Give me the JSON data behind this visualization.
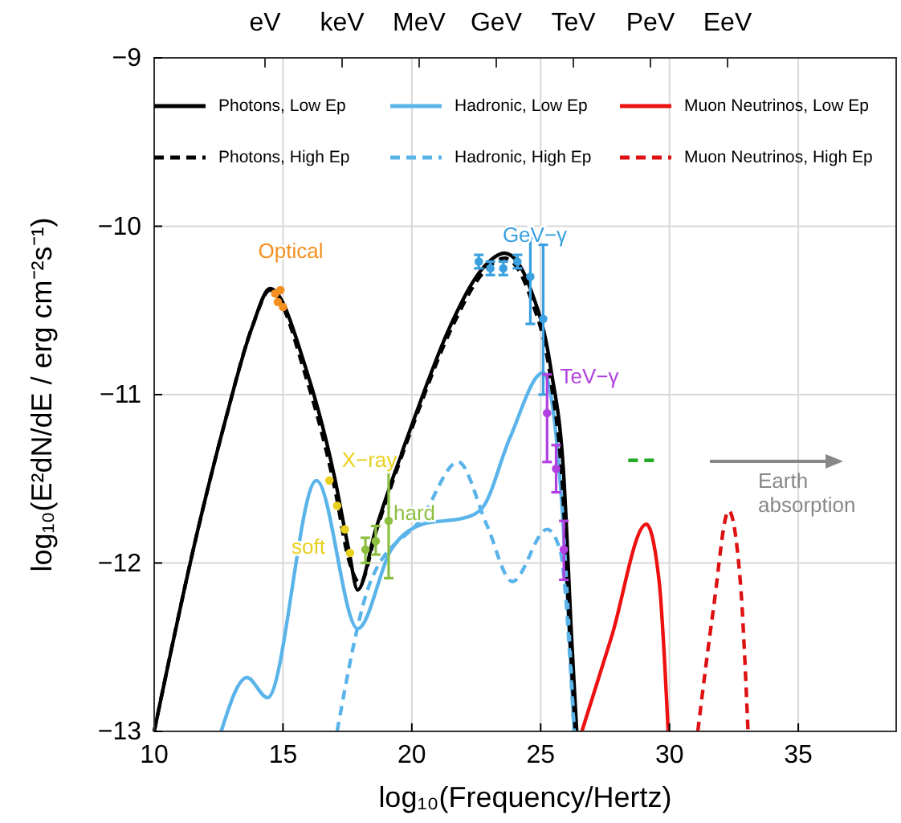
{
  "chart_data": {
    "type": "line",
    "xlabel": "log₁₀(Frequency/Hertz)",
    "ylabel": "log₁₀(E²dN/dE / erg cm⁻²s⁻¹)",
    "xlim": [
      10,
      38.8
    ],
    "ylim": [
      -13,
      -9
    ],
    "xticks": [
      10,
      15,
      20,
      25,
      30,
      35
    ],
    "yticks": [
      {
        "value": -13,
        "label": "−13"
      },
      {
        "value": -12,
        "label": "−12"
      },
      {
        "value": -11,
        "label": "−11"
      },
      {
        "value": -10,
        "label": "−10"
      },
      {
        "value": -9,
        "label": "−9"
      }
    ],
    "grid": true,
    "legend": "top",
    "series": [
      {
        "name": "Photons, Low Ep",
        "color": "#000000",
        "line_style": "solid",
        "x": [
          10,
          11.7,
          12.75,
          13.8,
          14.5,
          15.9,
          17.0,
          17.55,
          17.9,
          18.6,
          20.05,
          21.5,
          22.75,
          23.6,
          24.6,
          25.4,
          25.9,
          26.2,
          26.4
        ],
        "values": [
          -13,
          -11.8,
          -11.16,
          -10.6,
          -10.37,
          -10.85,
          -11.49,
          -11.92,
          -12.16,
          -11.8,
          -11.16,
          -10.59,
          -10.25,
          -10.16,
          -10.37,
          -10.85,
          -11.49,
          -12.44,
          -13
        ]
      },
      {
        "name": "Hadronic, Low Ep",
        "color": "#5ab4ea",
        "line_style": "solid",
        "x": [
          12.6,
          13.6,
          14.4,
          16.3,
          17.9,
          19.2,
          20.4,
          22.1,
          22.75,
          23.8,
          25.1,
          25.8,
          26.3
        ],
        "values": [
          -13,
          -12.68,
          -12.8,
          -11.51,
          -12.39,
          -11.92,
          -11.77,
          -11.73,
          -11.67,
          -11.26,
          -10.87,
          -11.6,
          -13
        ]
      },
      {
        "name": "Muon Neutrinos, Low Ep",
        "color": "#ee1111",
        "line_style": "solid",
        "x": [
          26.6,
          27.75,
          29.1,
          29.6,
          29.95
        ],
        "values": [
          -13,
          -12.44,
          -11.77,
          -12.11,
          -13
        ]
      },
      {
        "name": "Photons, High Ep",
        "color": "#000000",
        "line_style": "dashed",
        "x": [
          10,
          11.7,
          12.75,
          13.8,
          14.5,
          15.9,
          17.0,
          17.55,
          18.0,
          18.6,
          20.05,
          21.5,
          22.75,
          23.6,
          24.6,
          25.4,
          25.85,
          26.15,
          26.35
        ],
        "values": [
          -13,
          -11.8,
          -11.16,
          -10.6,
          -10.38,
          -10.9,
          -11.55,
          -11.98,
          -12.12,
          -11.82,
          -11.18,
          -10.62,
          -10.28,
          -10.19,
          -10.42,
          -10.92,
          -11.55,
          -12.48,
          -13
        ]
      },
      {
        "name": "Hadronic, High Ep",
        "color": "#5ab4ea",
        "line_style": "dashed",
        "x": [
          17.1,
          18.4,
          20.4,
          21.8,
          22.9,
          23.9,
          25.25,
          25.75,
          26.3
        ],
        "values": [
          -13,
          -12.11,
          -11.73,
          -11.4,
          -11.77,
          -12.11,
          -11.8,
          -11.92,
          -13
        ]
      },
      {
        "name": "Muon Neutrinos, High Ep",
        "color": "#dd1111",
        "line_style": "dashed",
        "x": [
          31.1,
          31.7,
          32.3,
          32.75,
          33.05
        ],
        "values": [
          -13,
          -12.28,
          -11.69,
          -12.11,
          -13
        ]
      },
      {
        "color": "#22aa22",
        "line_style": "dashed",
        "x": [
          28.4,
          29.6
        ],
        "values": [
          -11.39,
          -11.39
        ]
      },
      {
        "type": "scatter",
        "name": "Optical",
        "color": "#f39020",
        "marker": "circle",
        "x": [
          14.7,
          14.8,
          14.9,
          15.0
        ],
        "values": [
          -10.4,
          -10.45,
          -10.38,
          -10.48
        ]
      },
      {
        "type": "scatter",
        "name": "soft",
        "color": "#e8d020",
        "marker": "circle",
        "x": [
          16.8,
          17.1,
          17.4,
          17.6
        ],
        "values": [
          -11.51,
          -11.66,
          -11.8,
          -11.94
        ]
      },
      {
        "type": "scatter",
        "name": "hard",
        "color": "#8cbf3f",
        "marker": "circle",
        "x": [
          18.2,
          18.6,
          19.1
        ],
        "values": [
          -11.92,
          -11.87,
          -11.75
        ],
        "errors": [
          [
            -12.0,
            -11.85
          ],
          [
            -11.95,
            -11.78
          ],
          [
            -12.09,
            -11.42
          ]
        ]
      },
      {
        "type": "scatter",
        "name": "GeV−γ",
        "color": "#3aa0e0",
        "marker": "circle",
        "x": [
          22.6,
          23.05,
          23.55,
          24.1,
          24.6,
          25.1
        ],
        "values": [
          -10.21,
          -10.25,
          -10.25,
          -10.21,
          -10.3,
          -10.55
        ],
        "errors": [
          0.04,
          0.04,
          0.04,
          0.04,
          [
            -10.58,
            -10.07
          ],
          [
            -11.0,
            -10.11
          ]
        ]
      },
      {
        "type": "scatter",
        "name": "TeV−γ",
        "color": "#b040e0",
        "marker": "circle",
        "x": [
          25.25,
          25.6,
          25.9
        ],
        "values": [
          -11.11,
          -11.44,
          -11.92
        ],
        "errors": [
          [
            -11.4,
            -10.88
          ],
          [
            -11.58,
            -11.3
          ],
          [
            -12.1,
            -11.75
          ]
        ]
      }
    ],
    "annotations": [
      "eV",
      "keV",
      "MeV",
      "GeV",
      "TeV",
      "PeV",
      "EeV",
      "X−ray",
      "Earth absorption"
    ]
  }
}
